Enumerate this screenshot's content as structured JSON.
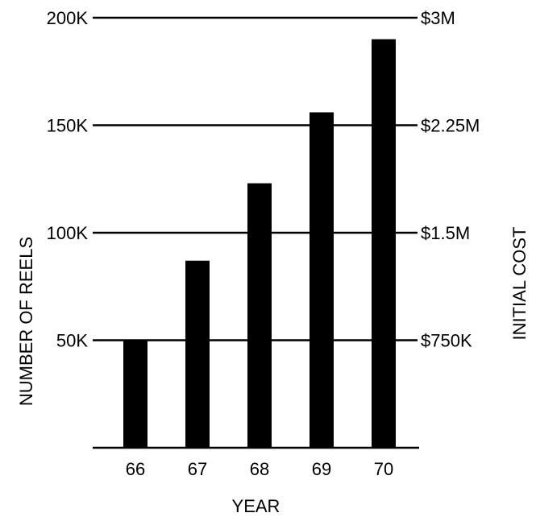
{
  "chart_data": {
    "type": "bar",
    "categories": [
      "66",
      "67",
      "68",
      "69",
      "70"
    ],
    "values": [
      50000,
      87000,
      123000,
      156000,
      190000
    ],
    "xlabel": "YEAR",
    "ylabel": "NUMBER OF REELS",
    "y2label": "INITIAL COST",
    "ylim": [
      0,
      200000
    ],
    "y2lim": [
      0,
      3000000
    ],
    "left_ticks": [
      {
        "value": 50000,
        "label": "50K"
      },
      {
        "value": 100000,
        "label": "100K"
      },
      {
        "value": 150000,
        "label": "150K"
      },
      {
        "value": 200000,
        "label": "200K"
      }
    ],
    "right_ticks": [
      {
        "value": 750000,
        "label": "$750K"
      },
      {
        "value": 1500000,
        "label": "$1.5M"
      },
      {
        "value": 2250000,
        "label": "$2.25M"
      },
      {
        "value": 3000000,
        "label": "$3M"
      }
    ],
    "grid": true,
    "bar_color": "#000000"
  }
}
